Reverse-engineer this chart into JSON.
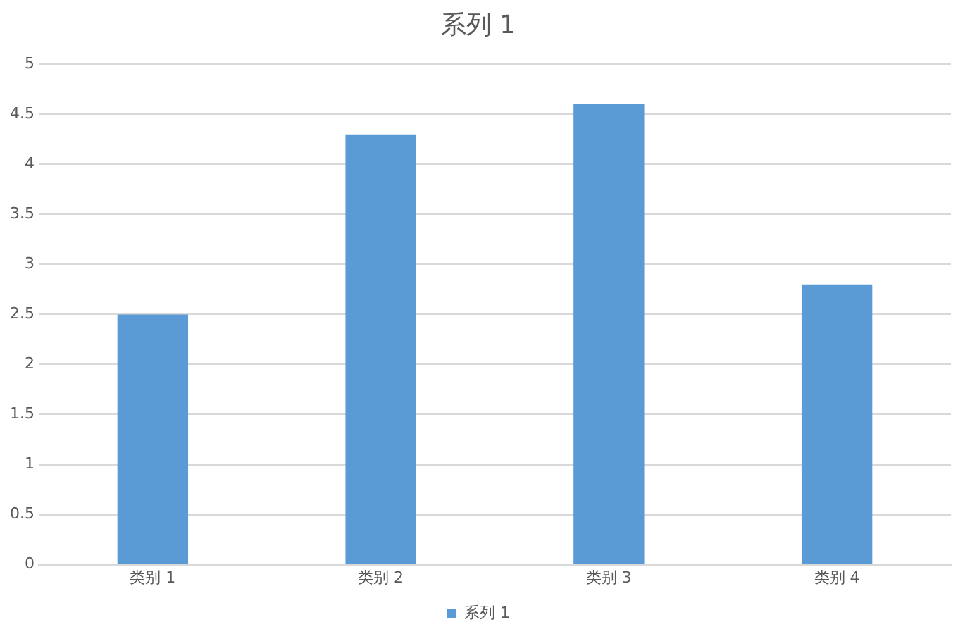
{
  "chart_data": {
    "type": "bar",
    "title": "系列 1",
    "categories": [
      "类别 1",
      "类别 2",
      "类别 3",
      "类别 4"
    ],
    "series": [
      {
        "name": "系列 1",
        "color": "#5b9bd5",
        "values": [
          2.5,
          4.3,
          4.6,
          2.8
        ]
      }
    ],
    "ylim": [
      0,
      5
    ],
    "yticks": [
      0,
      0.5,
      1,
      1.5,
      2,
      2.5,
      3,
      3.5,
      4,
      4.5,
      5
    ],
    "grid": "y",
    "legend": "bottom"
  }
}
